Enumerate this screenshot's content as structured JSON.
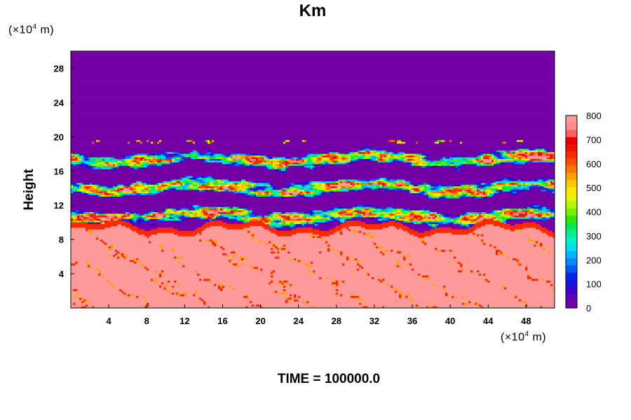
{
  "chart_data": {
    "type": "heatmap",
    "title": "Km",
    "ylabel": "Height",
    "xlabel": "",
    "x_unit_prefix": "(×10",
    "x_unit_exp": "4",
    "x_unit_suffix": " m)",
    "y_unit_prefix": "(×10",
    "y_unit_exp": "4",
    "y_unit_suffix": " m)",
    "xlim": [
      0,
      51
    ],
    "ylim": [
      0,
      30
    ],
    "xticks": [
      4,
      8,
      12,
      16,
      20,
      24,
      28,
      32,
      36,
      40,
      44,
      48
    ],
    "yticks": [
      4,
      8,
      12,
      16,
      20,
      24,
      28
    ],
    "colorbar": {
      "min": 0,
      "max": 800,
      "ticks": [
        0,
        100,
        200,
        300,
        400,
        500,
        600,
        700,
        800
      ],
      "colors": [
        "#7300a6",
        "#5f00b8",
        "#3d00c8",
        "#1a10d8",
        "#0028e8",
        "#0058f5",
        "#0088ff",
        "#00b4ff",
        "#00dcf0",
        "#00f0c8",
        "#00f08c",
        "#00e650",
        "#30e600",
        "#78f000",
        "#b4f500",
        "#e6f500",
        "#ffe600",
        "#ffc800",
        "#ffa000",
        "#ff7800",
        "#ff5000",
        "#ff2800",
        "#f01000",
        "#e60000",
        "#ff6060",
        "#ff8c8c",
        "#ff9a9a"
      ]
    },
    "field_summary": [
      {
        "y_range": [
          0,
          10
        ],
        "level": "800 (lower layer, with scattered 600–800 filaments)"
      },
      {
        "y_range": [
          10,
          19
        ],
        "level": "0–800 (mixed turbulent layer)"
      },
      {
        "y_range": [
          19,
          30
        ],
        "level": "0 (upper layer)"
      }
    ],
    "time_label": "TIME = 100000.0"
  }
}
